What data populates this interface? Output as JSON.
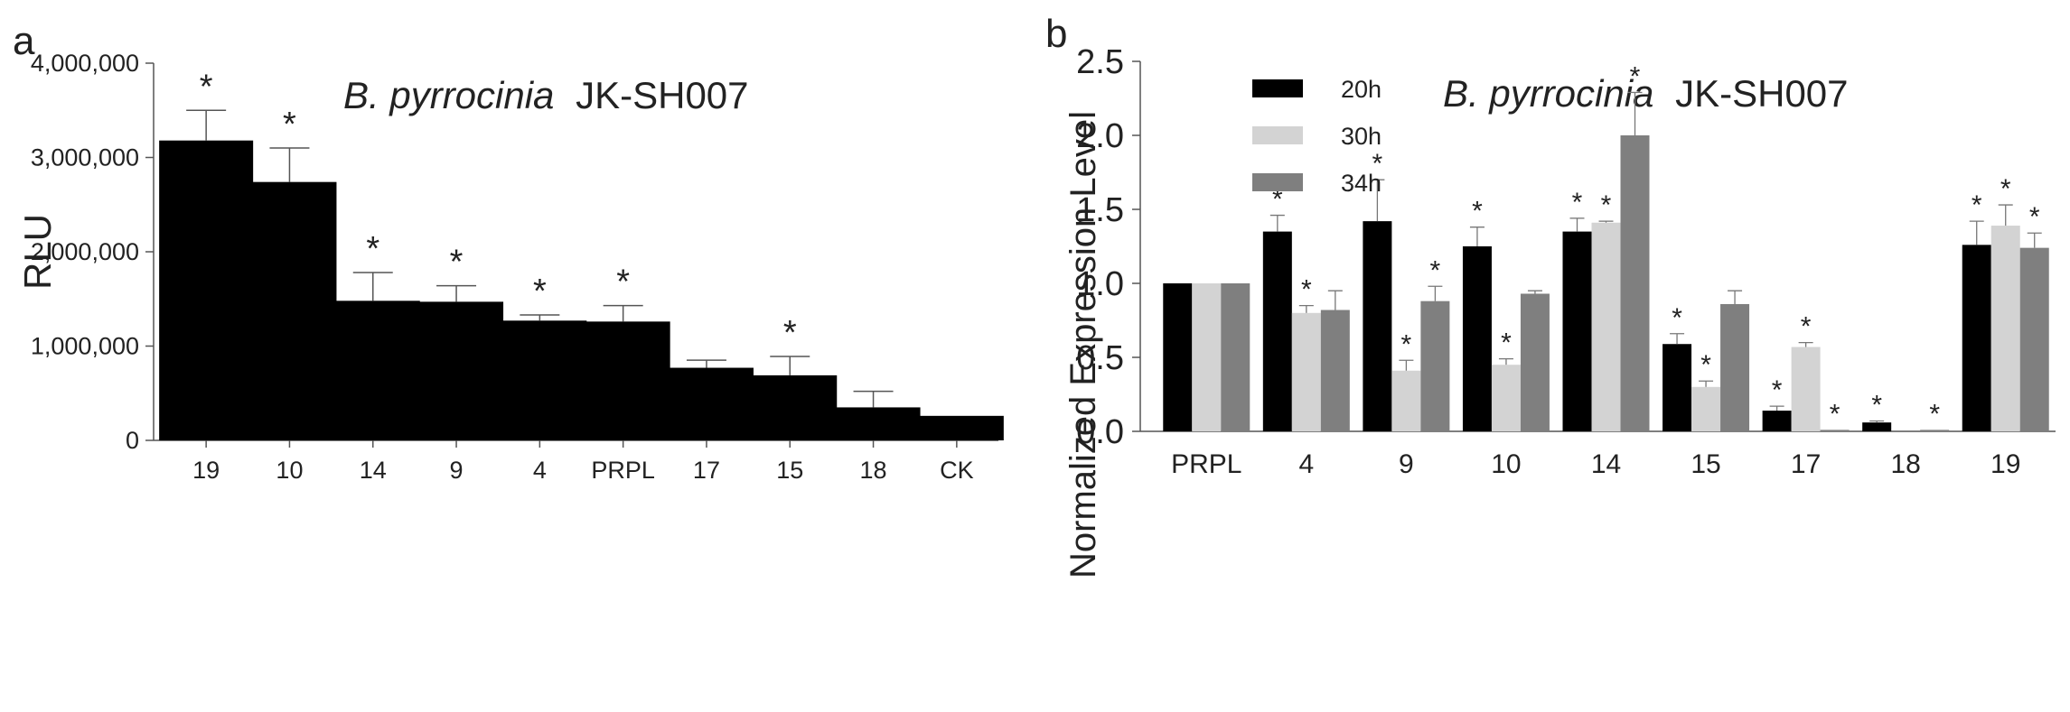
{
  "chart_data": [
    {
      "panel_label": "a",
      "type": "bar",
      "title_italic": "B. pyrrocinia",
      "title_rest": "JK-SH007",
      "xlabel": "",
      "ylabel": "RLU",
      "ylim": [
        0,
        4000000
      ],
      "yticks": [
        0,
        1000000,
        2000000,
        3000000,
        4000000
      ],
      "ytick_labels": [
        "0",
        "1,000,000",
        "2,000,000",
        "3,000,000",
        "4,000,000"
      ],
      "categories": [
        "19",
        "10",
        "14",
        "9",
        "4",
        "PRPL",
        "17",
        "15",
        "18",
        "CK"
      ],
      "values": [
        3180000,
        2740000,
        1480000,
        1470000,
        1270000,
        1260000,
        770000,
        690000,
        350000,
        260000
      ],
      "errors": [
        320000,
        360000,
        300000,
        170000,
        60000,
        170000,
        80000,
        200000,
        170000,
        0
      ],
      "significant": [
        true,
        true,
        true,
        true,
        true,
        true,
        false,
        true,
        false,
        false
      ],
      "sig_marker": "*",
      "bar_color": "#000000",
      "grid": false
    },
    {
      "panel_label": "b",
      "type": "bar",
      "title_italic": "B. pyrrocinia",
      "title_rest": "JK-SH007",
      "xlabel": "",
      "ylabel": "Normalized Expression Level",
      "ylim": [
        0,
        2.5
      ],
      "yticks": [
        0,
        0.5,
        1.0,
        1.5,
        2.0,
        2.5
      ],
      "ytick_labels": [
        "0.0",
        "0.5",
        "1.0",
        "1.5",
        "2.0",
        "2.5"
      ],
      "categories": [
        "PRPL",
        "4",
        "9",
        "10",
        "14",
        "15",
        "17",
        "18",
        "19"
      ],
      "legend_position": "top-left",
      "series": [
        {
          "name": "20h",
          "color": "#000000",
          "values": [
            1.0,
            1.35,
            1.42,
            1.25,
            1.35,
            0.59,
            0.14,
            0.06,
            1.26
          ],
          "errors": [
            0,
            0.11,
            0.28,
            0.13,
            0.09,
            0.07,
            0.03,
            0.01,
            0.16
          ],
          "significant": [
            false,
            true,
            true,
            true,
            true,
            true,
            true,
            true,
            true
          ]
        },
        {
          "name": "30h",
          "color": "#d3d3d3",
          "values": [
            1.0,
            0.8,
            0.41,
            0.45,
            1.41,
            0.3,
            0.57,
            0.0,
            1.39
          ],
          "errors": [
            0,
            0.05,
            0.07,
            0.04,
            0.01,
            0.04,
            0.03,
            0.0,
            0.14
          ],
          "significant": [
            false,
            true,
            true,
            true,
            true,
            true,
            true,
            false,
            true
          ]
        },
        {
          "name": "34h",
          "color": "#7f7f7f",
          "values": [
            1.0,
            0.82,
            0.88,
            0.93,
            2.0,
            0.86,
            0.01,
            0.01,
            1.24
          ],
          "errors": [
            0,
            0.13,
            0.1,
            0.02,
            0.29,
            0.09,
            0.0,
            0.0,
            0.1
          ],
          "significant": [
            false,
            false,
            true,
            false,
            true,
            false,
            true,
            true,
            true
          ]
        }
      ],
      "sig_marker": "*",
      "grid": false
    }
  ]
}
